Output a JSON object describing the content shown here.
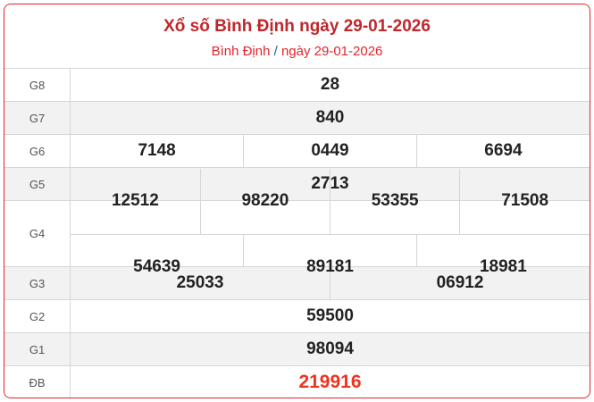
{
  "header": {
    "title": "Xổ số Bình Định ngày 29-01-2026",
    "breadcrumb": {
      "province": "Bình Định",
      "separator": "/",
      "date": "ngày 29-01-2026"
    }
  },
  "prizes": [
    {
      "label": "G8",
      "numbers": [
        "28"
      ]
    },
    {
      "label": "G7",
      "numbers": [
        "840"
      ]
    },
    {
      "label": "G6",
      "numbers": [
        "7148",
        "0449",
        "6694"
      ]
    },
    {
      "label": "G5",
      "numbers": [
        "2713"
      ]
    },
    {
      "label": "G4",
      "numbers": [
        "12512",
        "98220",
        "53355",
        "71508",
        "54639",
        "89181",
        "18981"
      ]
    },
    {
      "label": "G3",
      "numbers": [
        "25033",
        "06912"
      ]
    },
    {
      "label": "G2",
      "numbers": [
        "59500"
      ]
    },
    {
      "label": "G1",
      "numbers": [
        "98094"
      ]
    },
    {
      "label": "ĐB",
      "numbers": [
        "219916"
      ]
    }
  ],
  "colors": {
    "border": "#e3242b",
    "title": "#c0272d",
    "special": "#f0321e",
    "separator": "#1f5fa8"
  }
}
